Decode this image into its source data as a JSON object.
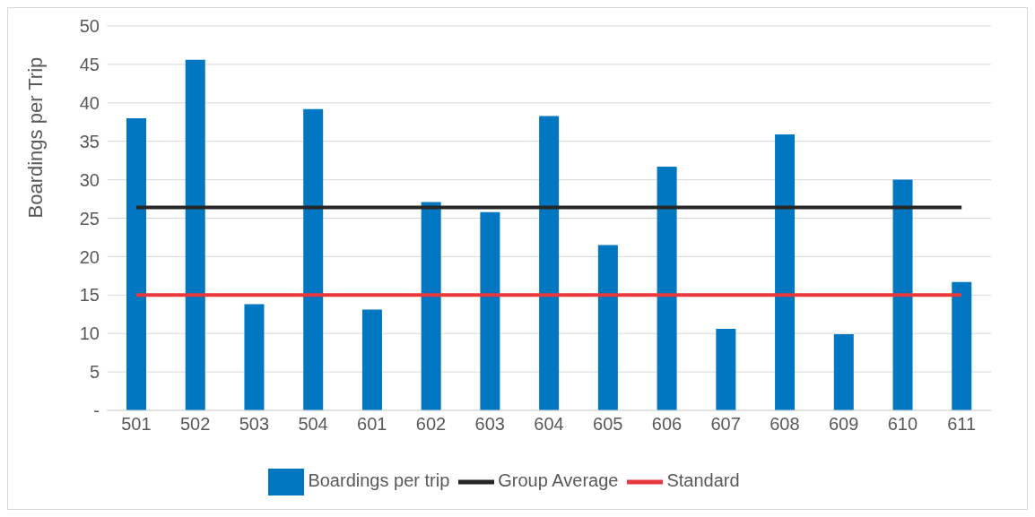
{
  "chart_data": {
    "type": "bar",
    "ylabel": "Boardings per Trip",
    "categories": [
      "501",
      "502",
      "503",
      "504",
      "601",
      "602",
      "603",
      "604",
      "605",
      "606",
      "607",
      "608",
      "609",
      "610",
      "611"
    ],
    "series": [
      {
        "name": "Boardings per trip",
        "color": "#0077c0",
        "values": [
          38,
          45.6,
          13.8,
          39.2,
          13.1,
          27.1,
          25.8,
          38.3,
          21.5,
          31.7,
          10.6,
          35.9,
          9.9,
          30,
          16.7
        ]
      },
      {
        "name": "Group Average",
        "type": "line",
        "color": "#262626",
        "values": [
          26.4,
          26.4,
          26.4,
          26.4,
          26.4,
          26.4,
          26.4,
          26.4,
          26.4,
          26.4,
          26.4,
          26.4,
          26.4,
          26.4,
          26.4
        ]
      },
      {
        "name": "Standard",
        "type": "line",
        "color": "#e8383d",
        "values": [
          15,
          15,
          15,
          15,
          15,
          15,
          15,
          15,
          15,
          15,
          15,
          15,
          15,
          15,
          15
        ]
      }
    ],
    "ylim": [
      0,
      50
    ],
    "yticks": [
      {
        "value": 0,
        "label": "-"
      },
      5,
      10,
      15,
      20,
      25,
      30,
      35,
      40,
      45,
      50
    ],
    "grid": "y",
    "legend": "bottom"
  }
}
